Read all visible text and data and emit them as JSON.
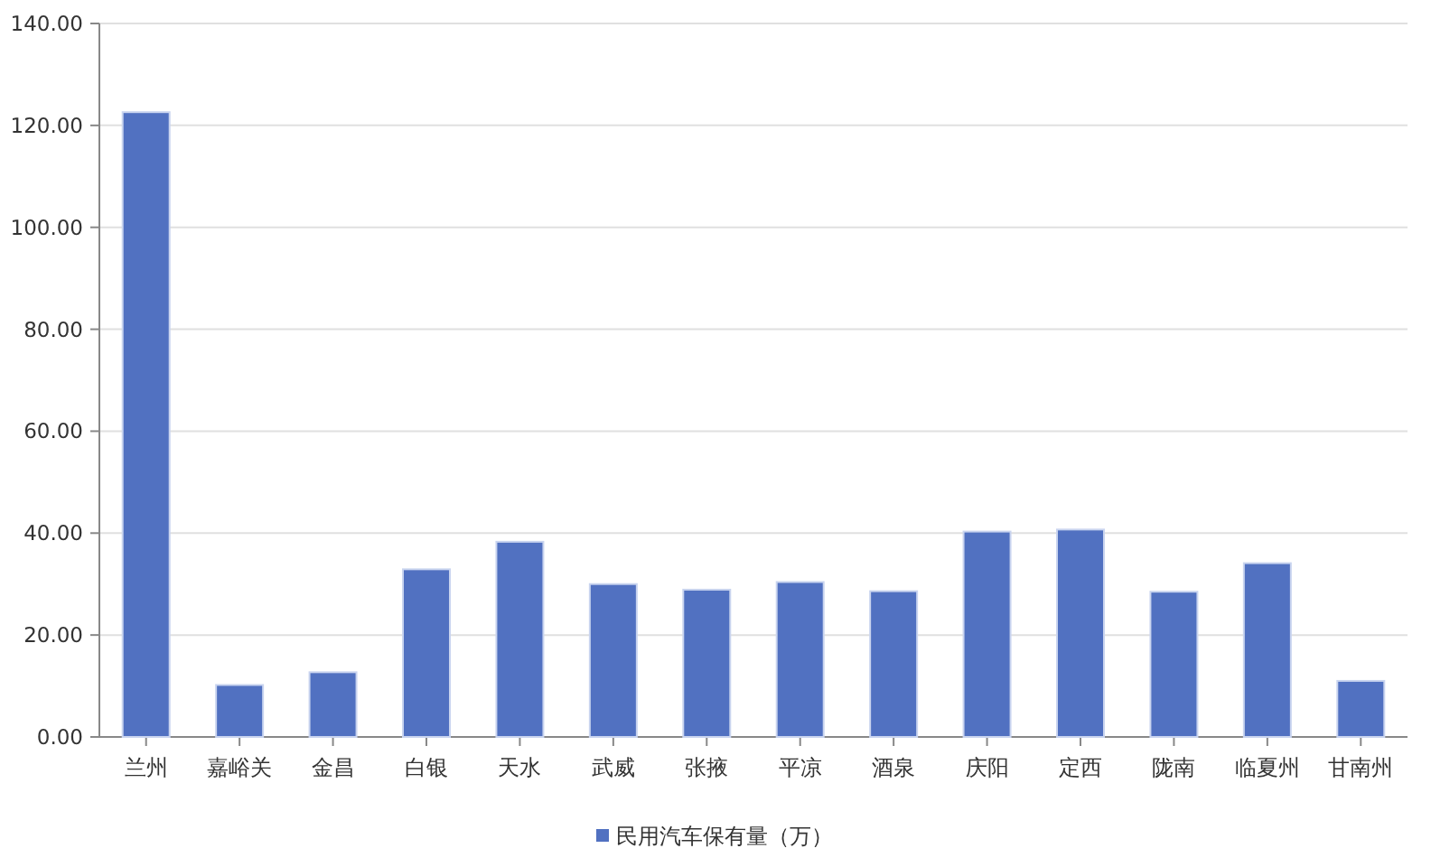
{
  "chart_data": {
    "type": "bar",
    "categories": [
      "兰州",
      "嘉峪关",
      "金昌",
      "白银",
      "天水",
      "武威",
      "张掖",
      "平凉",
      "酒泉",
      "庆阳",
      "定西",
      "陇南",
      "临夏州",
      "甘南州"
    ],
    "series": [
      {
        "name": "民用汽车保有量（万）",
        "color": "#5171c1",
        "values": [
          122.6,
          10.2,
          12.7,
          32.9,
          38.3,
          30.0,
          28.9,
          30.4,
          28.6,
          40.3,
          40.7,
          28.5,
          34.1,
          11.0
        ]
      }
    ],
    "ylim": [
      0,
      140
    ],
    "yticks": [
      {
        "value": 0,
        "label": "0.00"
      },
      {
        "value": 20,
        "label": "20.00"
      },
      {
        "value": 40,
        "label": "40.00"
      },
      {
        "value": 60,
        "label": "60.00"
      },
      {
        "value": 80,
        "label": "80.00"
      },
      {
        "value": 100,
        "label": "100.00"
      },
      {
        "value": 120,
        "label": "120.00"
      },
      {
        "value": 140,
        "label": "140.00"
      }
    ],
    "grid": "y",
    "legend": "bottom"
  }
}
